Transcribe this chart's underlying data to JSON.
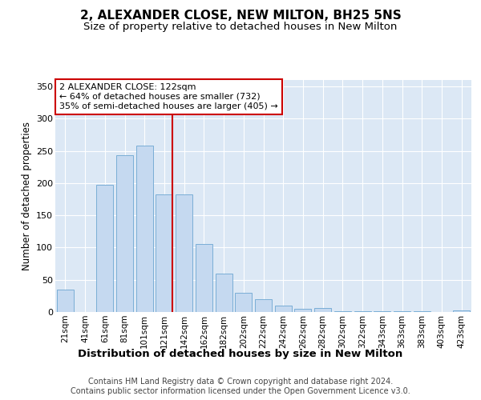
{
  "title": "2, ALEXANDER CLOSE, NEW MILTON, BH25 5NS",
  "subtitle": "Size of property relative to detached houses in New Milton",
  "xlabel": "Distribution of detached houses by size in New Milton",
  "ylabel": "Number of detached properties",
  "categories": [
    "21sqm",
    "41sqm",
    "61sqm",
    "81sqm",
    "101sqm",
    "121sqm",
    "142sqm",
    "162sqm",
    "182sqm",
    "202sqm",
    "222sqm",
    "242sqm",
    "262sqm",
    "282sqm",
    "302sqm",
    "322sqm",
    "343sqm",
    "363sqm",
    "383sqm",
    "403sqm",
    "423sqm"
  ],
  "values": [
    35,
    0,
    197,
    243,
    258,
    183,
    183,
    106,
    60,
    30,
    20,
    10,
    5,
    6,
    1,
    1,
    1,
    1,
    1,
    0,
    2
  ],
  "bar_color": "#c5d9f0",
  "bar_edge_color": "#7aaed6",
  "plot_bg_color": "#dce8f5",
  "fig_bg_color": "#ffffff",
  "grid_color": "#ffffff",
  "property_line_index": 5,
  "property_line_color": "#cc0000",
  "annotation_line1": "2 ALEXANDER CLOSE: 122sqm",
  "annotation_line2": "← 64% of detached houses are smaller (732)",
  "annotation_line3": "35% of semi-detached houses are larger (405) →",
  "annotation_box_edgecolor": "#cc0000",
  "ylim": [
    0,
    360
  ],
  "yticks": [
    0,
    50,
    100,
    150,
    200,
    250,
    300,
    350
  ],
  "footer_line1": "Contains HM Land Registry data © Crown copyright and database right 2024.",
  "footer_line2": "Contains public sector information licensed under the Open Government Licence v3.0."
}
